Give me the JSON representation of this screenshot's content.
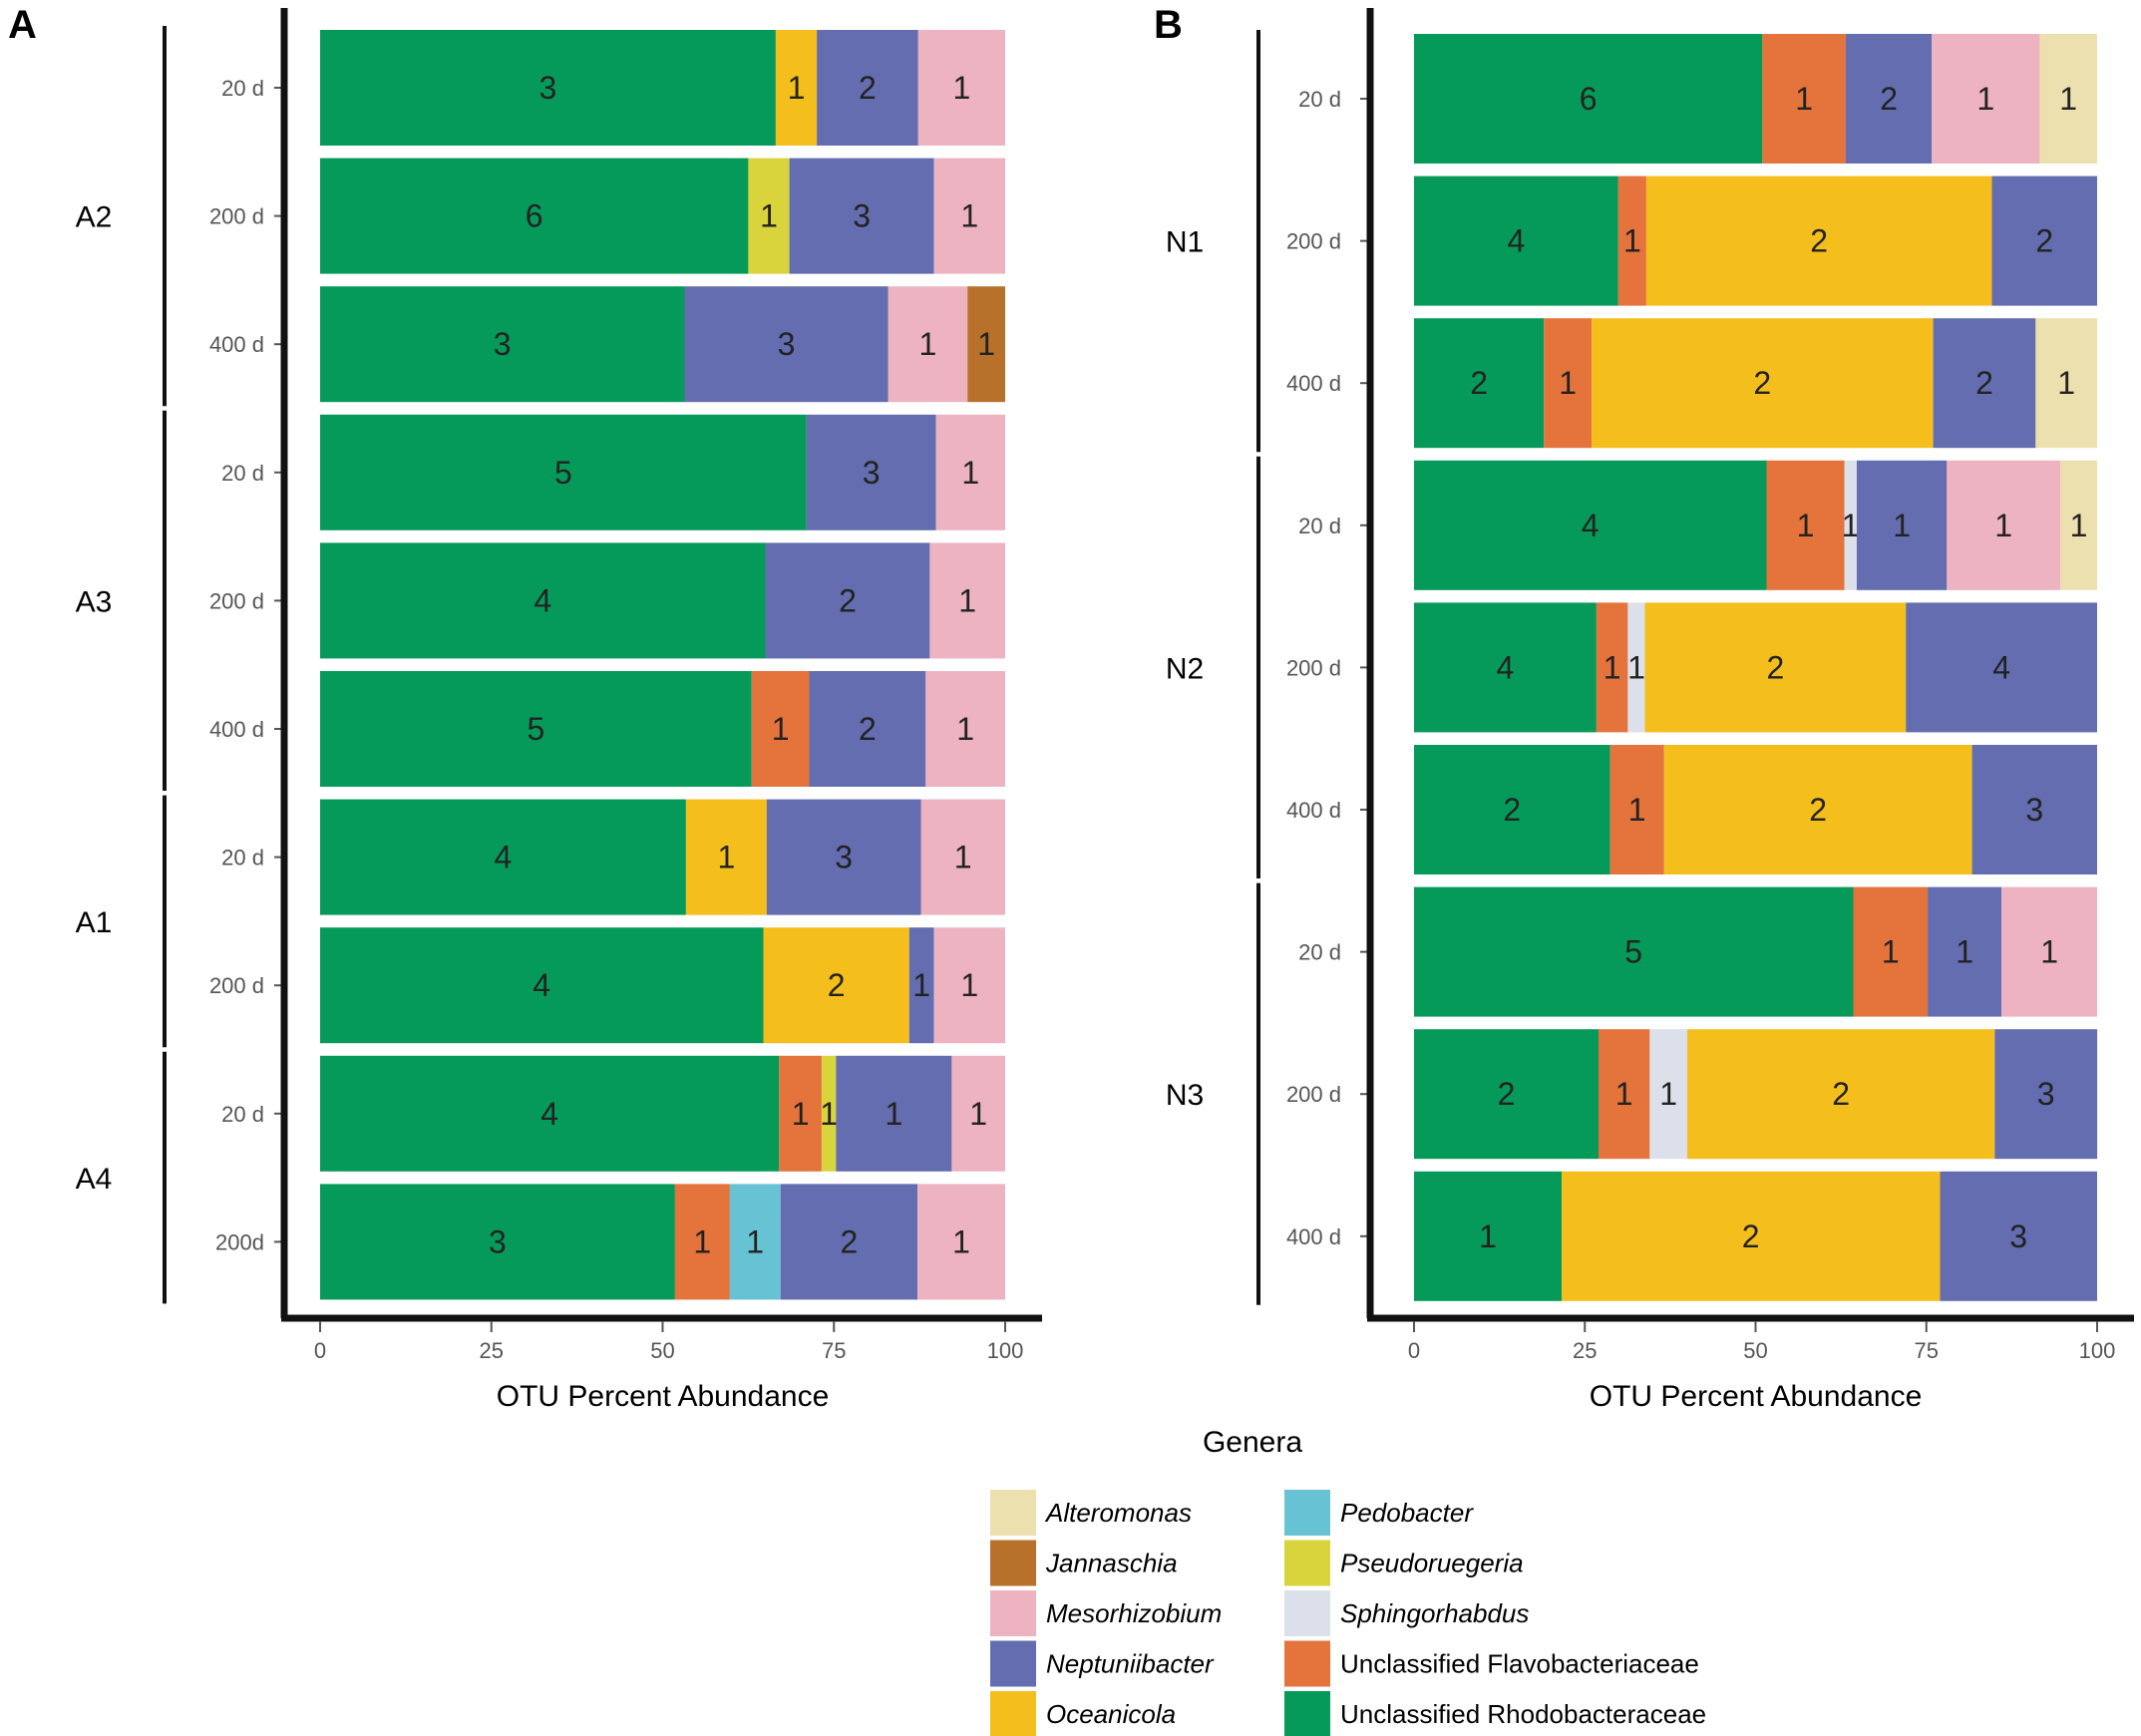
{
  "chart_data": {
    "type": "bar",
    "orientation": "horizontal",
    "stacked": true,
    "xlabel": "OTU Percent Abundance",
    "xlim": [
      0,
      100
    ],
    "xticks": [
      0,
      25,
      50,
      75,
      100
    ],
    "legend": {
      "title": "Genera",
      "placement": "bottom",
      "entries": [
        {
          "name": "Alteromonas",
          "color": "#EDE0AF",
          "italic": true
        },
        {
          "name": "Jannaschia",
          "color": "#B8712B",
          "italic": true
        },
        {
          "name": "Mesorhizobium",
          "color": "#EDB3C1",
          "italic": true
        },
        {
          "name": "Neptuniibacter",
          "color": "#636DAF",
          "italic": true
        },
        {
          "name": "Oceanicola",
          "color": "#F4BE1C",
          "italic": true
        },
        {
          "name": "Pedobacter",
          "color": "#67C3D3",
          "italic": true
        },
        {
          "name": "Pseudoruegeria",
          "color": "#DAD43C",
          "italic": true
        },
        {
          "name": "Sphingorhabdus",
          "color": "#DCE0EB",
          "italic": true
        },
        {
          "name": "Unclassified Flavobacteriaceae",
          "color": "#E4733C",
          "italic": false
        },
        {
          "name": "Unclassified Rhodobacteraceae",
          "color": "#069A5A",
          "italic": false
        }
      ]
    },
    "panels": [
      {
        "letter": "A",
        "groups": [
          {
            "name": "A2",
            "rows": [
              {
                "label": "20 d",
                "segments": [
                  {
                    "genus": "Unclassified Rhodobacteraceae",
                    "value": 66.5,
                    "otus": "3"
                  },
                  {
                    "genus": "Oceanicola",
                    "value": 6.0,
                    "otus": "1"
                  },
                  {
                    "genus": "Neptuniibacter",
                    "value": 14.8,
                    "otus": "2"
                  },
                  {
                    "genus": "Mesorhizobium",
                    "value": 12.7,
                    "otus": "1"
                  }
                ]
              },
              {
                "label": "200 d",
                "segments": [
                  {
                    "genus": "Unclassified Rhodobacteraceae",
                    "value": 62.5,
                    "otus": "6"
                  },
                  {
                    "genus": "Pseudoruegeria",
                    "value": 6.0,
                    "otus": "1"
                  },
                  {
                    "genus": "Neptuniibacter",
                    "value": 21.1,
                    "otus": "3"
                  },
                  {
                    "genus": "Mesorhizobium",
                    "value": 10.4,
                    "otus": "1"
                  }
                ]
              },
              {
                "label": "400 d",
                "segments": [
                  {
                    "genus": "Unclassified Rhodobacteraceae",
                    "value": 53.2,
                    "otus": "3"
                  },
                  {
                    "genus": "Neptuniibacter",
                    "value": 29.7,
                    "otus": "3"
                  },
                  {
                    "genus": "Mesorhizobium",
                    "value": 11.6,
                    "otus": "1"
                  },
                  {
                    "genus": "Jannaschia",
                    "value": 5.5,
                    "otus": "1"
                  }
                ]
              }
            ]
          },
          {
            "name": "A3",
            "rows": [
              {
                "label": "20 d",
                "segments": [
                  {
                    "genus": "Unclassified Rhodobacteraceae",
                    "value": 71.0,
                    "otus": "5"
                  },
                  {
                    "genus": "Neptuniibacter",
                    "value": 18.9,
                    "otus": "3"
                  },
                  {
                    "genus": "Mesorhizobium",
                    "value": 10.1,
                    "otus": "1"
                  }
                ]
              },
              {
                "label": "200 d",
                "segments": [
                  {
                    "genus": "Unclassified Rhodobacteraceae",
                    "value": 65.0,
                    "otus": "4"
                  },
                  {
                    "genus": "Neptuniibacter",
                    "value": 24.0,
                    "otus": "2"
                  },
                  {
                    "genus": "Mesorhizobium",
                    "value": 11.0,
                    "otus": "1"
                  }
                ]
              },
              {
                "label": "400 d",
                "segments": [
                  {
                    "genus": "Unclassified Rhodobacteraceae",
                    "value": 63.0,
                    "otus": "5"
                  },
                  {
                    "genus": "Unclassified Flavobacteriaceae",
                    "value": 8.4,
                    "otus": "1"
                  },
                  {
                    "genus": "Neptuniibacter",
                    "value": 17.0,
                    "otus": "2"
                  },
                  {
                    "genus": "Mesorhizobium",
                    "value": 11.6,
                    "otus": "1"
                  }
                ]
              }
            ]
          },
          {
            "name": "A1",
            "rows": [
              {
                "label": "20 d",
                "segments": [
                  {
                    "genus": "Unclassified Rhodobacteraceae",
                    "value": 53.4,
                    "otus": "4"
                  },
                  {
                    "genus": "Oceanicola",
                    "value": 11.8,
                    "otus": "1"
                  },
                  {
                    "genus": "Neptuniibacter",
                    "value": 22.5,
                    "otus": "3"
                  },
                  {
                    "genus": "Mesorhizobium",
                    "value": 12.3,
                    "otus": "1"
                  }
                ]
              },
              {
                "label": "200 d",
                "segments": [
                  {
                    "genus": "Unclassified Rhodobacteraceae",
                    "value": 64.7,
                    "otus": "4"
                  },
                  {
                    "genus": "Oceanicola",
                    "value": 21.3,
                    "otus": "2"
                  },
                  {
                    "genus": "Neptuniibacter",
                    "value": 3.6,
                    "otus": "1"
                  },
                  {
                    "genus": "Mesorhizobium",
                    "value": 10.4,
                    "otus": "1"
                  }
                ]
              }
            ]
          },
          {
            "name": "A4",
            "rows": [
              {
                "label": "20 d",
                "segments": [
                  {
                    "genus": "Unclassified Rhodobacteraceae",
                    "value": 67.0,
                    "otus": "4"
                  },
                  {
                    "genus": "Unclassified Flavobacteriaceae",
                    "value": 6.2,
                    "otus": "1"
                  },
                  {
                    "genus": "Pseudoruegeria",
                    "value": 2.1,
                    "otus": "1"
                  },
                  {
                    "genus": "Neptuniibacter",
                    "value": 16.9,
                    "otus": "1"
                  },
                  {
                    "genus": "Mesorhizobium",
                    "value": 7.8,
                    "otus": "1"
                  }
                ]
              },
              {
                "label": "200d",
                "segments": [
                  {
                    "genus": "Unclassified Rhodobacteraceae",
                    "value": 51.8,
                    "otus": "3"
                  },
                  {
                    "genus": "Unclassified Flavobacteriaceae",
                    "value": 8.0,
                    "otus": "1"
                  },
                  {
                    "genus": "Pedobacter",
                    "value": 7.4,
                    "otus": "1"
                  },
                  {
                    "genus": "Neptuniibacter",
                    "value": 20.0,
                    "otus": "2"
                  },
                  {
                    "genus": "Mesorhizobium",
                    "value": 12.8,
                    "otus": "1"
                  }
                ]
              }
            ]
          }
        ]
      },
      {
        "letter": "B",
        "groups": [
          {
            "name": "N1",
            "rows": [
              {
                "label": "20 d",
                "segments": [
                  {
                    "genus": "Unclassified Rhodobacteraceae",
                    "value": 51.0,
                    "otus": "6"
                  },
                  {
                    "genus": "Unclassified Flavobacteriaceae",
                    "value": 12.2,
                    "otus": "1"
                  },
                  {
                    "genus": "Neptuniibacter",
                    "value": 12.6,
                    "otus": "2"
                  },
                  {
                    "genus": "Mesorhizobium",
                    "value": 15.8,
                    "otus": "1"
                  },
                  {
                    "genus": "Alteromonas",
                    "value": 8.4,
                    "otus": "1"
                  }
                ]
              },
              {
                "label": "200 d",
                "segments": [
                  {
                    "genus": "Unclassified Rhodobacteraceae",
                    "value": 29.9,
                    "otus": "4"
                  },
                  {
                    "genus": "Unclassified Flavobacteriaceae",
                    "value": 4.1,
                    "otus": "1"
                  },
                  {
                    "genus": "Oceanicola",
                    "value": 50.6,
                    "otus": "2"
                  },
                  {
                    "genus": "Neptuniibacter",
                    "value": 15.4,
                    "otus": "2"
                  }
                ]
              },
              {
                "label": "400 d",
                "segments": [
                  {
                    "genus": "Unclassified Rhodobacteraceae",
                    "value": 19.0,
                    "otus": "2"
                  },
                  {
                    "genus": "Unclassified Flavobacteriaceae",
                    "value": 7.0,
                    "otus": "1"
                  },
                  {
                    "genus": "Oceanicola",
                    "value": 50.0,
                    "otus": "2"
                  },
                  {
                    "genus": "Neptuniibacter",
                    "value": 15.0,
                    "otus": "2"
                  },
                  {
                    "genus": "Alteromonas",
                    "value": 9.0,
                    "otus": "1"
                  }
                ]
              }
            ]
          },
          {
            "name": "N2",
            "rows": [
              {
                "label": "20 d",
                "segments": [
                  {
                    "genus": "Unclassified Rhodobacteraceae",
                    "value": 51.6,
                    "otus": "4"
                  },
                  {
                    "genus": "Unclassified Flavobacteriaceae",
                    "value": 11.4,
                    "otus": "1"
                  },
                  {
                    "genus": "Sphingorhabdus",
                    "value": 1.8,
                    "otus": "1"
                  },
                  {
                    "genus": "Neptuniibacter",
                    "value": 13.2,
                    "otus": "1"
                  },
                  {
                    "genus": "Mesorhizobium",
                    "value": 16.6,
                    "otus": "1"
                  },
                  {
                    "genus": "Alteromonas",
                    "value": 5.4,
                    "otus": "1"
                  }
                ]
              },
              {
                "label": "200 d",
                "segments": [
                  {
                    "genus": "Unclassified Rhodobacteraceae",
                    "value": 26.7,
                    "otus": "4"
                  },
                  {
                    "genus": "Unclassified Flavobacteriaceae",
                    "value": 4.6,
                    "otus": "1"
                  },
                  {
                    "genus": "Sphingorhabdus",
                    "value": 2.5,
                    "otus": "1"
                  },
                  {
                    "genus": "Oceanicola",
                    "value": 38.2,
                    "otus": "2"
                  },
                  {
                    "genus": "Neptuniibacter",
                    "value": 28.0,
                    "otus": "4"
                  }
                ]
              },
              {
                "label": "400 d",
                "segments": [
                  {
                    "genus": "Unclassified Rhodobacteraceae",
                    "value": 28.7,
                    "otus": "2"
                  },
                  {
                    "genus": "Unclassified Flavobacteriaceae",
                    "value": 7.9,
                    "otus": "1"
                  },
                  {
                    "genus": "Oceanicola",
                    "value": 45.1,
                    "otus": "2"
                  },
                  {
                    "genus": "Neptuniibacter",
                    "value": 18.3,
                    "otus": "3"
                  }
                ]
              }
            ]
          },
          {
            "name": "N3",
            "rows": [
              {
                "label": "20 d",
                "segments": [
                  {
                    "genus": "Unclassified Rhodobacteraceae",
                    "value": 64.3,
                    "otus": "5"
                  },
                  {
                    "genus": "Unclassified Flavobacteriaceae",
                    "value": 10.9,
                    "otus": "1"
                  },
                  {
                    "genus": "Neptuniibacter",
                    "value": 10.8,
                    "otus": "1"
                  },
                  {
                    "genus": "Mesorhizobium",
                    "value": 14.0,
                    "otus": "1"
                  }
                ]
              },
              {
                "label": "200 d",
                "segments": [
                  {
                    "genus": "Unclassified Rhodobacteraceae",
                    "value": 27.0,
                    "otus": "2"
                  },
                  {
                    "genus": "Unclassified Flavobacteriaceae",
                    "value": 7.5,
                    "otus": "1"
                  },
                  {
                    "genus": "Sphingorhabdus",
                    "value": 5.5,
                    "otus": "1"
                  },
                  {
                    "genus": "Oceanicola",
                    "value": 45.0,
                    "otus": "2"
                  },
                  {
                    "genus": "Neptuniibacter",
                    "value": 15.0,
                    "otus": "3"
                  }
                ]
              },
              {
                "label": "400 d",
                "segments": [
                  {
                    "genus": "Unclassified Rhodobacteraceae",
                    "value": 21.6,
                    "otus": "1"
                  },
                  {
                    "genus": "Oceanicola",
                    "value": 55.4,
                    "otus": "2"
                  },
                  {
                    "genus": "Neptuniibacter",
                    "value": 23.0,
                    "otus": "3"
                  }
                ]
              }
            ]
          }
        ]
      }
    ]
  }
}
